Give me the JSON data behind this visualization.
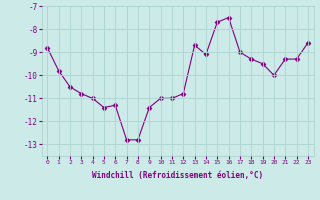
{
  "x": [
    0,
    1,
    2,
    3,
    4,
    5,
    6,
    7,
    8,
    9,
    10,
    11,
    12,
    13,
    14,
    15,
    16,
    17,
    18,
    19,
    20,
    21,
    22,
    23
  ],
  "y": [
    -8.8,
    -9.8,
    -10.5,
    -10.8,
    -11.0,
    -11.4,
    -11.3,
    -12.8,
    -12.8,
    -11.4,
    -11.0,
    -11.0,
    -10.8,
    -8.7,
    -9.1,
    -7.7,
    -7.5,
    -9.0,
    -9.3,
    -9.5,
    -10.0,
    -9.3,
    -9.3,
    -8.6
  ],
  "line_color": "#800080",
  "marker_color": "#800080",
  "bg_color": "#cceae7",
  "grid_color": "#aed4d0",
  "xlabel": "Windchill (Refroidissement éolien,°C)",
  "xlabel_color": "#800080",
  "tick_color": "#800080",
  "ylim": [
    -13.5,
    -7.0
  ],
  "xlim": [
    -0.5,
    23.5
  ],
  "yticks": [
    -13,
    -12,
    -11,
    -10,
    -9,
    -8,
    -7
  ],
  "xtick_labels": [
    "0",
    "1",
    "2",
    "3",
    "4",
    "5",
    "6",
    "7",
    "8",
    "9",
    "10",
    "11",
    "12",
    "13",
    "14",
    "15",
    "16",
    "17",
    "18",
    "19",
    "20",
    "21",
    "22",
    "23"
  ]
}
